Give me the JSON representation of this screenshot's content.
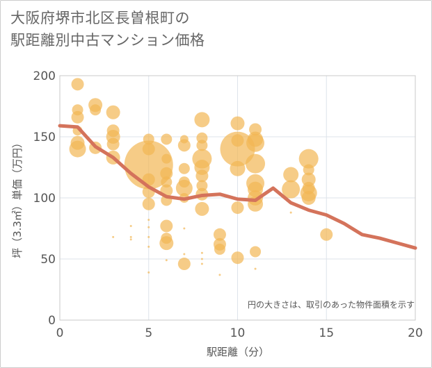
{
  "title_line1": "大阪府堺市北区長曽根町の",
  "title_line2": "駅距離別中古マンション価格",
  "colors": {
    "bubble": "#f2b654",
    "line": "#d4735b",
    "grid": "#dde3ea",
    "plot_border": "#c9c9c9"
  },
  "chart_data": {
    "type": "scatter",
    "xlabel": "駅距離（分）",
    "ylabel": "坪（3.3㎡）単価（万円）",
    "xlim": [
      0,
      20
    ],
    "ylim": [
      0,
      200
    ],
    "xticks": [
      0,
      5,
      10,
      15,
      20
    ],
    "yticks": [
      0,
      50,
      100,
      150,
      200
    ],
    "note": "円の大きさは、取引のあった物件面積を示す",
    "grid": true,
    "trend_line": {
      "x": [
        0,
        1,
        2,
        3,
        4,
        5,
        6,
        7,
        8,
        9,
        10,
        11,
        12,
        13,
        14,
        15,
        16,
        17,
        18,
        19,
        20
      ],
      "y": [
        159,
        158,
        142,
        133,
        120,
        109,
        101,
        99,
        102,
        103,
        99,
        98,
        108,
        96,
        90,
        86,
        79,
        70,
        67,
        63,
        59
      ]
    },
    "bubbles": [
      {
        "x": 1,
        "y": 193,
        "r": 9
      },
      {
        "x": 1,
        "y": 172,
        "r": 8
      },
      {
        "x": 1,
        "y": 166,
        "r": 9
      },
      {
        "x": 1,
        "y": 155,
        "r": 7
      },
      {
        "x": 1,
        "y": 145,
        "r": 10
      },
      {
        "x": 1,
        "y": 140,
        "r": 12
      },
      {
        "x": 2,
        "y": 176,
        "r": 10
      },
      {
        "x": 2,
        "y": 172,
        "r": 8
      },
      {
        "x": 2,
        "y": 141,
        "r": 9
      },
      {
        "x": 3,
        "y": 170,
        "r": 10
      },
      {
        "x": 3,
        "y": 155,
        "r": 9
      },
      {
        "x": 3,
        "y": 150,
        "r": 10
      },
      {
        "x": 3,
        "y": 144,
        "r": 9
      },
      {
        "x": 3,
        "y": 133,
        "r": 10
      },
      {
        "x": 3,
        "y": 68,
        "r": 1.5
      },
      {
        "x": 4,
        "y": 77,
        "r": 1.5
      },
      {
        "x": 4,
        "y": 68,
        "r": 1.5
      },
      {
        "x": 4,
        "y": 66,
        "r": 1.5
      },
      {
        "x": 5,
        "y": 148,
        "r": 8
      },
      {
        "x": 5,
        "y": 140,
        "r": 9
      },
      {
        "x": 5,
        "y": 127,
        "r": 35
      },
      {
        "x": 5,
        "y": 115,
        "r": 9
      },
      {
        "x": 5,
        "y": 105,
        "r": 9
      },
      {
        "x": 5,
        "y": 95,
        "r": 9
      },
      {
        "x": 5,
        "y": 82,
        "r": 1.5
      },
      {
        "x": 5,
        "y": 76,
        "r": 1.5
      },
      {
        "x": 5,
        "y": 68,
        "r": 1.5
      },
      {
        "x": 5,
        "y": 60,
        "r": 1.5
      },
      {
        "x": 5,
        "y": 39,
        "r": 1.5
      },
      {
        "x": 6,
        "y": 148,
        "r": 8
      },
      {
        "x": 6,
        "y": 132,
        "r": 7
      },
      {
        "x": 6,
        "y": 120,
        "r": 9
      },
      {
        "x": 6,
        "y": 113,
        "r": 8
      },
      {
        "x": 6,
        "y": 106,
        "r": 9
      },
      {
        "x": 6,
        "y": 98,
        "r": 8
      },
      {
        "x": 6,
        "y": 77,
        "r": 9
      },
      {
        "x": 6,
        "y": 67,
        "r": 8
      },
      {
        "x": 6,
        "y": 63,
        "r": 10
      },
      {
        "x": 6,
        "y": 49,
        "r": 1.5
      },
      {
        "x": 7,
        "y": 148,
        "r": 6
      },
      {
        "x": 7,
        "y": 143,
        "r": 9
      },
      {
        "x": 7,
        "y": 124,
        "r": 8
      },
      {
        "x": 7,
        "y": 113,
        "r": 8
      },
      {
        "x": 7,
        "y": 108,
        "r": 12
      },
      {
        "x": 7,
        "y": 100,
        "r": 7
      },
      {
        "x": 7,
        "y": 75,
        "r": 1.5
      },
      {
        "x": 7,
        "y": 54,
        "r": 1.5
      },
      {
        "x": 7,
        "y": 46,
        "r": 9
      },
      {
        "x": 8,
        "y": 164,
        "r": 11
      },
      {
        "x": 8,
        "y": 149,
        "r": 8
      },
      {
        "x": 8,
        "y": 143,
        "r": 8
      },
      {
        "x": 8,
        "y": 132,
        "r": 14
      },
      {
        "x": 8,
        "y": 125,
        "r": 11
      },
      {
        "x": 8,
        "y": 118,
        "r": 9
      },
      {
        "x": 8,
        "y": 110,
        "r": 8
      },
      {
        "x": 8,
        "y": 103,
        "r": 9
      },
      {
        "x": 8,
        "y": 91,
        "r": 10
      },
      {
        "x": 8,
        "y": 55,
        "r": 1.5
      },
      {
        "x": 8,
        "y": 50,
        "r": 1.5
      },
      {
        "x": 8,
        "y": 46,
        "r": 1.5
      },
      {
        "x": 9,
        "y": 70,
        "r": 9
      },
      {
        "x": 9,
        "y": 62,
        "r": 9
      },
      {
        "x": 9,
        "y": 58,
        "r": 8
      },
      {
        "x": 9,
        "y": 37,
        "r": 1.5
      },
      {
        "x": 10,
        "y": 161,
        "r": 10
      },
      {
        "x": 10,
        "y": 147,
        "r": 9
      },
      {
        "x": 10,
        "y": 140,
        "r": 25
      },
      {
        "x": 10,
        "y": 124,
        "r": 11
      },
      {
        "x": 10,
        "y": 92,
        "r": 9
      },
      {
        "x": 10,
        "y": 51,
        "r": 9
      },
      {
        "x": 11,
        "y": 156,
        "r": 9
      },
      {
        "x": 11,
        "y": 148,
        "r": 11
      },
      {
        "x": 11,
        "y": 145,
        "r": 13
      },
      {
        "x": 11,
        "y": 128,
        "r": 14
      },
      {
        "x": 11,
        "y": 112,
        "r": 13
      },
      {
        "x": 11,
        "y": 107,
        "r": 11
      },
      {
        "x": 11,
        "y": 100,
        "r": 11
      },
      {
        "x": 11,
        "y": 95,
        "r": 11
      },
      {
        "x": 11,
        "y": 56,
        "r": 8
      },
      {
        "x": 11,
        "y": 42,
        "r": 1.5
      },
      {
        "x": 13,
        "y": 119,
        "r": 11
      },
      {
        "x": 13,
        "y": 107,
        "r": 13
      },
      {
        "x": 13,
        "y": 88,
        "r": 1.5
      },
      {
        "x": 14,
        "y": 132,
        "r": 14
      },
      {
        "x": 14,
        "y": 123,
        "r": 8
      },
      {
        "x": 14,
        "y": 115,
        "r": 10
      },
      {
        "x": 14,
        "y": 108,
        "r": 9
      },
      {
        "x": 14,
        "y": 104,
        "r": 12
      },
      {
        "x": 14,
        "y": 100,
        "r": 10
      },
      {
        "x": 15,
        "y": 70,
        "r": 9
      }
    ]
  }
}
